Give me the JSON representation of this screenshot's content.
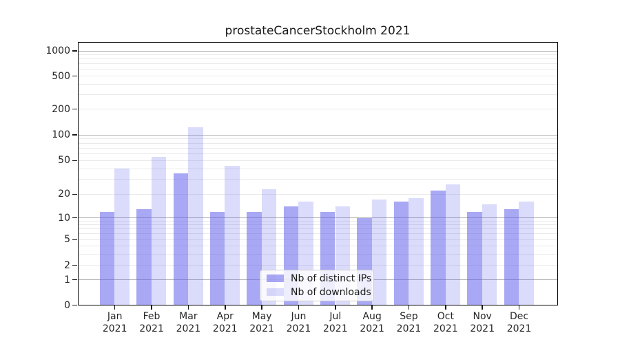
{
  "chart_data": {
    "type": "bar",
    "title": "prostateCancerStockholm 2021",
    "categories": [
      "Jan",
      "Feb",
      "Mar",
      "Apr",
      "May",
      "Jun",
      "Jul",
      "Aug",
      "Sep",
      "Oct",
      "Nov",
      "Dec"
    ],
    "year_label": "2021",
    "series": [
      {
        "name": "Nb of distinct IPs",
        "values": [
          12,
          13,
          35,
          12,
          12,
          14,
          12,
          10,
          16,
          22,
          12,
          13
        ],
        "color": "rgba(90,90,235,0.53)"
      },
      {
        "name": "Nb of downloads",
        "values": [
          40,
          55,
          122,
          43,
          23,
          16,
          14,
          17,
          18,
          26,
          15,
          16
        ],
        "color": "rgba(90,90,235,0.22)"
      }
    ],
    "y_ticks": [
      0,
      1,
      2,
      5,
      10,
      20,
      50,
      100,
      200,
      500,
      1000
    ],
    "y_scale": "symlog",
    "ylim": [
      0,
      1000
    ],
    "grid": "on",
    "legend_position": "lower-center",
    "colors": {
      "bar_dark": "#a7a7f1",
      "bar_light": "#dbdbf8",
      "grid_major": "#b4b4b4",
      "grid_minor": "#eaeaea",
      "axis_text": "#262626"
    }
  }
}
